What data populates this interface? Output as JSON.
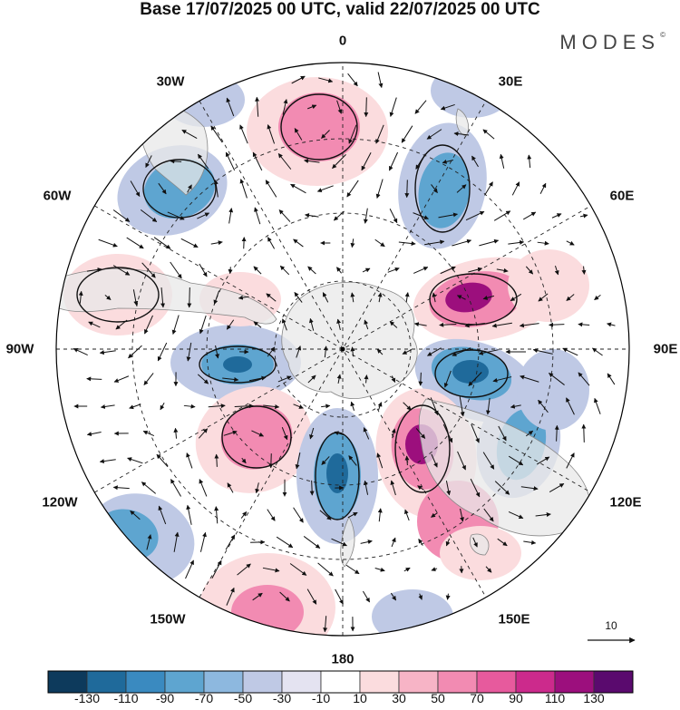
{
  "title": "Base 17/07/2025 00 UTC, valid 22/07/2025 00 UTC",
  "brand": "MODES",
  "brand_mark": "©",
  "longitude_labels": {
    "lon_0": "0",
    "lon_30e": "30E",
    "lon_60e": "60E",
    "lon_90e": "90E",
    "lon_120e": "120E",
    "lon_150e": "150E",
    "lon_180": "180",
    "lon_150w": "150W",
    "lon_120w": "120W",
    "lon_90w": "90W",
    "lon_60w": "60W",
    "lon_30w": "30W"
  },
  "vector_scale": {
    "label": "10"
  },
  "colorbar": {
    "colors": [
      "#0d3a5c",
      "#1f6a9b",
      "#3a8ac0",
      "#5ea5d0",
      "#8db8df",
      "#bfc9e5",
      "#e4e3f1",
      "#ffffff",
      "#fbdcde",
      "#f7b4c6",
      "#f28bb2",
      "#e75a9d",
      "#cc2a8c",
      "#9c0f7d",
      "#5a0a6e"
    ],
    "ticks": [
      "-130",
      "-110",
      "-90",
      "-70",
      "-50",
      "-30",
      "-10",
      "10",
      "30",
      "50",
      "70",
      "90",
      "110",
      "130"
    ]
  },
  "map_data": {
    "projection": "south polar stereographic",
    "field_colors": {
      "strong_negative": "#1f6a9b",
      "negative": "#5ea5d0",
      "weak_negative": "#bfc9e5",
      "weak_positive": "#fbdcde",
      "positive": "#f28bb2",
      "strong_positive": "#9c0f7d",
      "land": "#e8e8e8"
    }
  }
}
